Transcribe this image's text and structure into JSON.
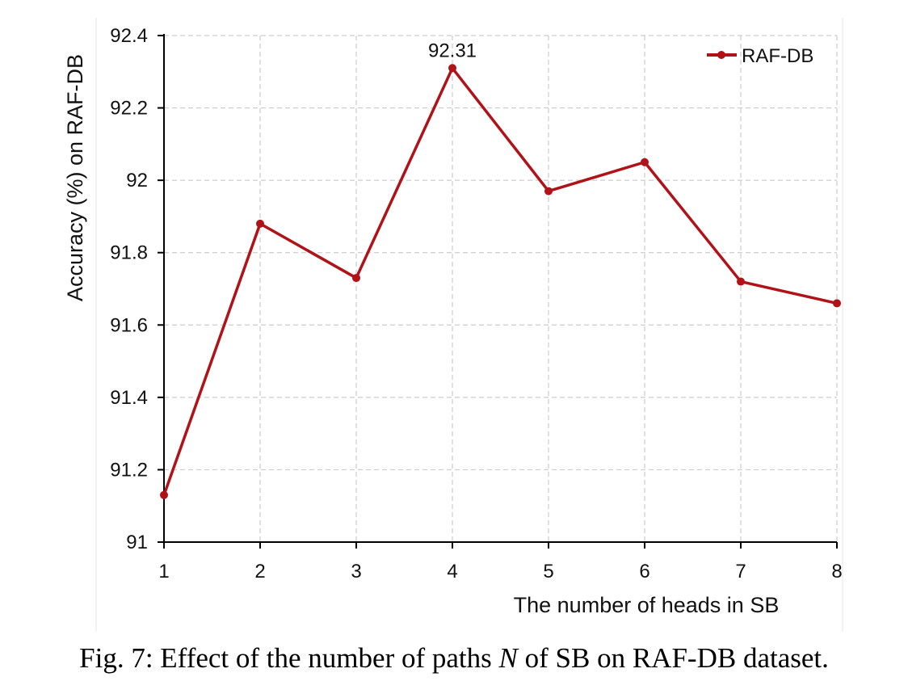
{
  "chart_data": {
    "type": "line",
    "title": "",
    "xlabel": "The number of heads in SB",
    "ylabel": "Accuracy (%) on RAF-DB",
    "x": [
      1,
      2,
      3,
      4,
      5,
      6,
      7,
      8
    ],
    "x_tick_labels": [
      "1",
      "2",
      "3",
      "4",
      "5",
      "6",
      "7",
      "8"
    ],
    "y_tick_labels": [
      "91",
      "91.2",
      "91.4",
      "91.6",
      "91.8",
      "92",
      "92.2",
      "92.4"
    ],
    "y_ticks": [
      91,
      91.2,
      91.4,
      91.6,
      91.8,
      92,
      92.2,
      92.4
    ],
    "xlim": [
      1,
      8
    ],
    "ylim": [
      91,
      92.4
    ],
    "grid": true,
    "legend_position": "top-right",
    "series": [
      {
        "name": "RAF-DB",
        "color": "#b01217",
        "values": [
          91.13,
          91.88,
          91.73,
          92.31,
          91.97,
          92.05,
          91.72,
          91.66
        ]
      }
    ],
    "annotations": [
      {
        "x": 4,
        "y": 92.31,
        "text": "92.31"
      }
    ]
  },
  "caption": {
    "prefix": "Fig. 7: Effect of the number of paths ",
    "variable": "N",
    "suffix": " of SB on RAF-DB dataset."
  }
}
